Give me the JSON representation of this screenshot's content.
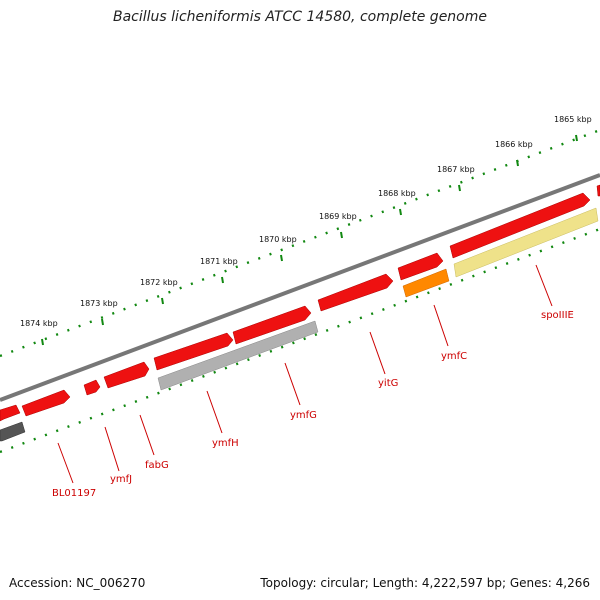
{
  "title": "Bacillus licheniformis ATCC 14580, complete genome",
  "accession_label": "Accession: NC_006270",
  "summary_label": "Topology: circular; Length: 4,222,597 bp; Genes: 4,266",
  "kbp_ticks": [
    "1865 kbp",
    "1866 kbp",
    "1867 kbp",
    "1868 kbp",
    "1869 kbp",
    "1870 kbp",
    "1871 kbp",
    "1872 kbp",
    "1873 kbp",
    "1874 kbp"
  ],
  "genes": [
    {
      "name": "BL01197",
      "strand": "reverse",
      "track": "inner",
      "color": "#555555"
    },
    {
      "name": "ymfJ",
      "strand": "forward",
      "track": "outer",
      "color": "#ee1111"
    },
    {
      "name": "fabG",
      "strand": "forward",
      "track": "outer",
      "color": "#ee1111"
    },
    {
      "name": "ymfH",
      "strand": "reverse",
      "track": "inner",
      "color": "#b0b0b0"
    },
    {
      "name": "ymfG",
      "strand": "forward",
      "track": "outer",
      "color": "#ee1111"
    },
    {
      "name": "yitG",
      "strand": "forward",
      "track": "outer",
      "color": "#ee1111"
    },
    {
      "name": "ymfC",
      "strand": "reverse",
      "track": "inner",
      "color": "#ff8800"
    },
    {
      "name": "spoIIIE",
      "strand": "reverse",
      "track": "inner",
      "color": "#efe28a"
    }
  ],
  "colors": {
    "backbone": "#777777",
    "tick": "#118811",
    "gene_forward": "#ee1111",
    "label": "#cc0000"
  }
}
